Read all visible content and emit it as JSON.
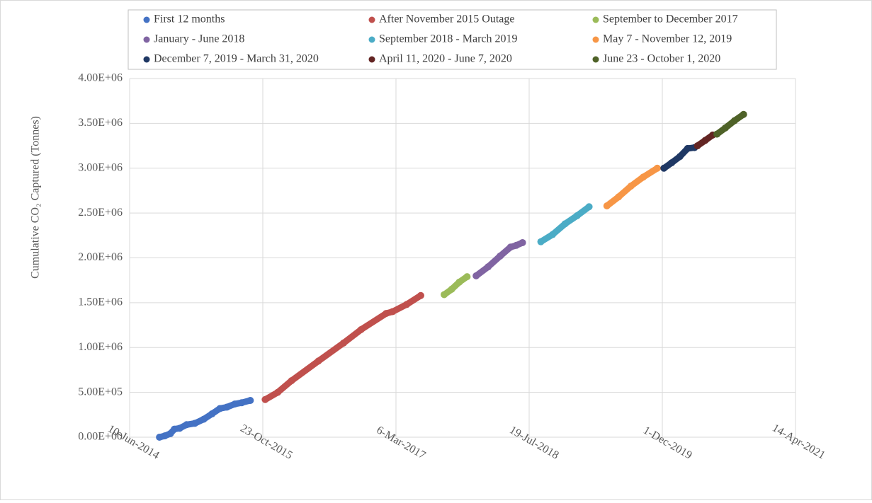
{
  "chart_data": {
    "type": "scatter",
    "y_label": "Cumulative CO₂ Captured (Tonnes)",
    "xlim": [
      "2014-06-10",
      "2021-04-14"
    ],
    "xticks": [
      {
        "value": "2014-06-10",
        "label": "10-Jun-2014"
      },
      {
        "value": "2015-10-23",
        "label": "23-Oct-2015"
      },
      {
        "value": "2017-03-06",
        "label": "6-Mar-2017"
      },
      {
        "value": "2018-07-19",
        "label": "19-Jul-2018"
      },
      {
        "value": "2019-12-01",
        "label": "1-Dec-2019"
      },
      {
        "value": "2021-04-14",
        "label": "14-Apr-2021"
      }
    ],
    "ylim": [
      0,
      4000000
    ],
    "yticks": [
      {
        "value": 0,
        "label": "0.00E+00"
      },
      {
        "value": 500000,
        "label": "5.00E+05"
      },
      {
        "value": 1000000,
        "label": "1.00E+06"
      },
      {
        "value": 1500000,
        "label": "1.50E+06"
      },
      {
        "value": 2000000,
        "label": "2.00E+06"
      },
      {
        "value": 2500000,
        "label": "2.50E+06"
      },
      {
        "value": 3000000,
        "label": "3.00E+06"
      },
      {
        "value": 3500000,
        "label": "3.50E+06"
      },
      {
        "value": 4000000,
        "label": "4.00E+06"
      }
    ],
    "grid": true,
    "legend": "top",
    "series": [
      {
        "name": "First 12 months",
        "color": "#4472c4",
        "x": [
          "2014-09-30",
          "2014-10-20",
          "2014-11-10",
          "2014-11-25",
          "2014-12-15",
          "2015-01-10",
          "2015-02-10",
          "2015-03-15",
          "2015-04-15",
          "2015-05-15",
          "2015-06-10",
          "2015-07-10",
          "2015-08-05",
          "2015-09-06"
        ],
        "values": [
          0,
          15000,
          40000,
          90000,
          100000,
          140000,
          155000,
          200000,
          260000,
          320000,
          335000,
          370000,
          385000,
          410000
        ]
      },
      {
        "name": "After November 2015 Outage",
        "color": "#c0504d",
        "x": [
          "2015-11-01",
          "2015-12-18",
          "2016-02-08",
          "2016-05-19",
          "2016-08-21",
          "2016-10-26",
          "2017-01-28",
          "2017-02-21",
          "2017-04-15",
          "2017-06-07"
        ],
        "values": [
          420000,
          500000,
          630000,
          850000,
          1050000,
          1200000,
          1380000,
          1400000,
          1480000,
          1580000
        ]
      },
      {
        "name": "September to December 2017",
        "color": "#9bbb59",
        "x": [
          "2017-09-03",
          "2017-10-01",
          "2017-10-30",
          "2017-11-28"
        ],
        "values": [
          1590000,
          1650000,
          1730000,
          1790000
        ]
      },
      {
        "name": "January - June 2018",
        "color": "#8064a2",
        "x": [
          "2018-01-01",
          "2018-02-15",
          "2018-04-01",
          "2018-05-10",
          "2018-06-01",
          "2018-06-24"
        ],
        "values": [
          1800000,
          1900000,
          2020000,
          2120000,
          2140000,
          2170000
        ]
      },
      {
        "name": "September 2018 - March 2019",
        "color": "#4bacc6",
        "x": [
          "2018-09-01",
          "2018-10-15",
          "2018-12-01",
          "2019-01-15",
          "2019-03-01"
        ],
        "values": [
          2180000,
          2260000,
          2380000,
          2470000,
          2570000
        ]
      },
      {
        "name": "May 7 - November 12, 2019",
        "color": "#f79646",
        "x": [
          "2019-05-07",
          "2019-06-20",
          "2019-08-05",
          "2019-09-20",
          "2019-11-12"
        ],
        "values": [
          2580000,
          2680000,
          2800000,
          2900000,
          3000000
        ]
      },
      {
        "name": "December 7, 2019 - March 31, 2020",
        "color": "#1f3864",
        "x": [
          "2019-12-07",
          "2020-01-05",
          "2020-02-05",
          "2020-03-05",
          "2020-03-31"
        ],
        "values": [
          3000000,
          3060000,
          3130000,
          3220000,
          3230000
        ]
      },
      {
        "name": "April 11, 2020 - June 7, 2020",
        "color": "#632523",
        "x": [
          "2020-04-11",
          "2020-05-10",
          "2020-06-07"
        ],
        "values": [
          3250000,
          3310000,
          3370000
        ]
      },
      {
        "name": "June 23 - October 1, 2020",
        "color": "#4f6228",
        "x": [
          "2020-06-23",
          "2020-07-25",
          "2020-08-28",
          "2020-10-01"
        ],
        "values": [
          3380000,
          3450000,
          3530000,
          3600000
        ]
      }
    ]
  }
}
